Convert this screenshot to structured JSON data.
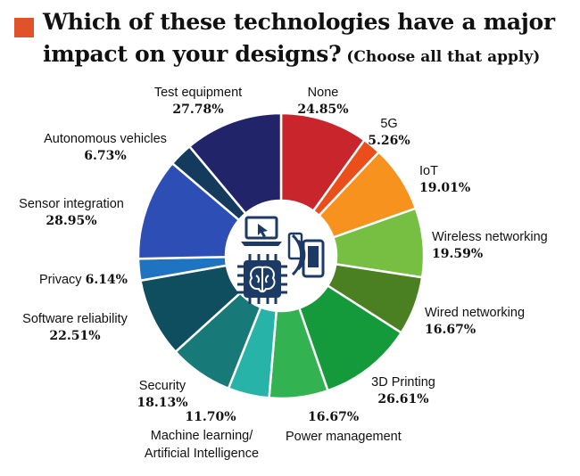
{
  "title": {
    "line1": "Which of these technologies have a major",
    "line2": "impact on your designs?",
    "subtitle": "(Choose all that apply)"
  },
  "colors": {
    "accent": "#e0522a",
    "center_icons": "#1b3a66"
  },
  "center_icons": [
    "laptop-cursor-icon",
    "brain-chip-icon",
    "wireless-phone-icon"
  ],
  "chart_data": {
    "type": "pie",
    "style": "donut",
    "unit": "%",
    "slices": [
      {
        "label": "None",
        "value": 24.85,
        "display": "24.85%",
        "color": "#c9252c"
      },
      {
        "label": "5G",
        "value": 5.26,
        "display": "5.26%",
        "color": "#e94e1b"
      },
      {
        "label": "IoT",
        "value": 19.01,
        "display": "19.01%",
        "color": "#f7921e"
      },
      {
        "label": "Wireless networking",
        "value": 19.59,
        "display": "19.59%",
        "color": "#76bf43"
      },
      {
        "label": "Wired networking",
        "value": 16.67,
        "display": "16.67%",
        "color": "#4a7f22"
      },
      {
        "label": "3D Printing",
        "value": 26.61,
        "display": "26.61%",
        "color": "#149a3a"
      },
      {
        "label": "Power management",
        "value": 16.67,
        "display": "16.67%",
        "color": "#33b251"
      },
      {
        "label": "Machine learning/ Artificial Intelligence",
        "value": 11.7,
        "display": "11.70%",
        "color": "#27b3a8"
      },
      {
        "label": "Security",
        "value": 18.13,
        "display": "18.13%",
        "color": "#187a78"
      },
      {
        "label": "Software reliability",
        "value": 22.51,
        "display": "22.51%",
        "color": "#0f4e5f"
      },
      {
        "label": "Privacy",
        "value": 6.14,
        "display": "6.14%",
        "color": "#1f74c1"
      },
      {
        "label": "Sensor integration",
        "value": 28.95,
        "display": "28.95%",
        "color": "#2d4fb5"
      },
      {
        "label": "Autonomous vehicles",
        "value": 6.73,
        "display": "6.73%",
        "color": "#143a5e"
      },
      {
        "label": "Test equipment",
        "value": 27.78,
        "display": "27.78%",
        "color": "#22246a"
      }
    ]
  }
}
